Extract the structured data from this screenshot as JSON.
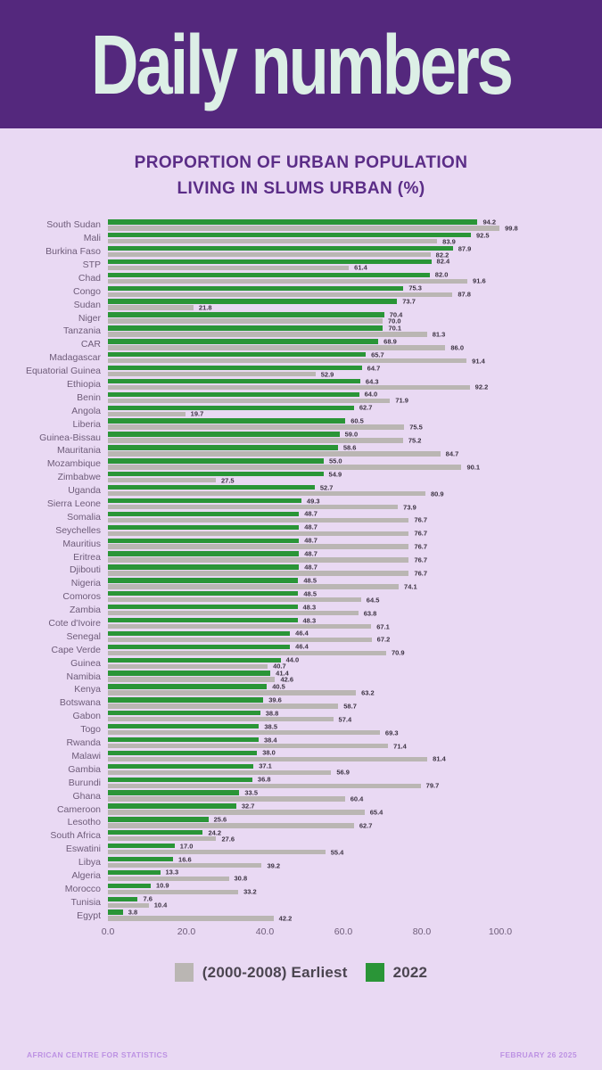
{
  "header": {
    "title": "Daily numbers"
  },
  "subtitle": {
    "line1": "PROPORTION OF URBAN POPULATION",
    "line2": "LIVING IN SLUMS URBAN (%)"
  },
  "chart_data": {
    "type": "bar",
    "orientation": "horizontal",
    "title": "Proportion of urban population living in slums urban (%)",
    "xlim": [
      0,
      100
    ],
    "x_ticks": [
      0,
      20,
      40,
      60,
      80,
      100
    ],
    "x_tick_labels": [
      "0.0",
      "20.0",
      "40.0",
      "60.0",
      "80.0",
      "100.0"
    ],
    "grid": false,
    "legend_position": "bottom",
    "value_labels": true,
    "categories": [
      "South Sudan",
      "Mali",
      "Burkina Faso",
      "STP",
      "Chad",
      "Congo",
      "Sudan",
      "Niger",
      "Tanzania",
      "CAR",
      "Madagascar",
      "Equatorial Guinea",
      "Ethiopia",
      "Benin",
      "Angola",
      "Liberia",
      "Guinea-Bissau",
      "Mauritania",
      "Mozambique",
      "Zimbabwe",
      "Uganda",
      "Sierra Leone",
      "Somalia",
      "Seychelles",
      "Mauritius",
      "Eritrea",
      "Djibouti",
      "Nigeria",
      "Comoros",
      "Zambia",
      "Cote d'Ivoire",
      "Senegal",
      "Cape Verde",
      "Guinea",
      "Namibia",
      "Kenya",
      "Botswana",
      "Gabon",
      "Togo",
      "Rwanda",
      "Malawi",
      "Gambia",
      "Burundi",
      "Ghana",
      "Cameroon",
      "Lesotho",
      "South Africa",
      "Eswatini",
      "Libya",
      "Algeria",
      "Morocco",
      "Tunisia",
      "Egypt"
    ],
    "series": [
      {
        "name": "2022",
        "color": "#2a9537",
        "values": [
          94.2,
          92.5,
          87.9,
          82.4,
          82.0,
          75.3,
          73.7,
          70.4,
          70.1,
          68.9,
          65.7,
          64.7,
          64.3,
          64.0,
          62.7,
          60.5,
          59.0,
          58.6,
          55.0,
          54.9,
          52.7,
          49.3,
          48.7,
          48.7,
          48.7,
          48.7,
          48.7,
          48.5,
          48.5,
          48.3,
          48.3,
          46.4,
          46.4,
          44.0,
          41.4,
          40.5,
          39.6,
          38.8,
          38.5,
          38.4,
          38.0,
          37.1,
          36.8,
          33.5,
          32.7,
          25.6,
          24.2,
          17.0,
          16.6,
          13.3,
          10.9,
          7.6,
          3.8
        ]
      },
      {
        "name": "(2000-2008) Earliest",
        "color": "#bab6b3",
        "values": [
          99.8,
          83.9,
          82.2,
          61.4,
          91.6,
          87.8,
          21.8,
          70.0,
          81.3,
          86.0,
          91.4,
          52.9,
          92.2,
          71.9,
          19.7,
          75.5,
          75.2,
          84.7,
          90.1,
          27.5,
          80.9,
          73.9,
          76.7,
          76.7,
          76.7,
          76.7,
          76.7,
          74.1,
          64.5,
          63.8,
          67.1,
          67.2,
          70.9,
          40.7,
          42.6,
          63.2,
          58.7,
          57.4,
          69.3,
          71.4,
          81.4,
          56.9,
          79.7,
          60.4,
          65.4,
          62.7,
          27.6,
          55.4,
          39.2,
          30.8,
          33.2,
          10.4,
          42.2
        ]
      }
    ]
  },
  "legend": [
    {
      "label": "(2000-2008) Earliest",
      "color": "#bab6b3"
    },
    {
      "label": "2022",
      "color": "#2a9537"
    }
  ],
  "footer": {
    "left": "AFRICAN CENTRE FOR STATISTICS",
    "right": "FEBRUARY 26 2025"
  },
  "colors": {
    "page_background": "#e9d9f3",
    "header_background": "#54287d",
    "title_text": "#dcefe6",
    "subtitle_text": "#5b2d87",
    "axis_text": "#6e5c79",
    "value_label_text": "#3c3342",
    "footer_text": "#bd92e3"
  }
}
